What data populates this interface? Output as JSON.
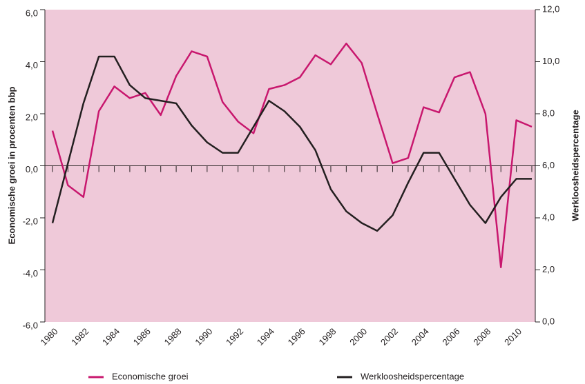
{
  "chart_data": {
    "type": "line",
    "x": [
      1980,
      1981,
      1982,
      1983,
      1984,
      1985,
      1986,
      1987,
      1988,
      1989,
      1990,
      1991,
      1992,
      1993,
      1994,
      1995,
      1996,
      1997,
      1998,
      1999,
      2000,
      2001,
      2002,
      2003,
      2004,
      2005,
      2006,
      2007,
      2008,
      2009,
      2010,
      2011
    ],
    "xlim": [
      1980,
      2011
    ],
    "xticks": [
      1980,
      1982,
      1984,
      1986,
      1988,
      1990,
      1992,
      1994,
      1996,
      1998,
      2000,
      2002,
      2004,
      2006,
      2008,
      2010
    ],
    "ylabel": "Economische groei in procenten bbp",
    "y2label": "Werkloosheidspercentage",
    "ylim": [
      -6,
      6
    ],
    "yticks": [
      {
        "value": -6,
        "label": "-6,0"
      },
      {
        "value": -4,
        "label": "-4,0"
      },
      {
        "value": -2,
        "label": "-2,0"
      },
      {
        "value": 0,
        "label": "0,0"
      },
      {
        "value": 2,
        "label": "2,0"
      },
      {
        "value": 4,
        "label": "4,0"
      },
      {
        "value": 6,
        "label": "6,0"
      }
    ],
    "y2lim": [
      0,
      12
    ],
    "y2ticks": [
      {
        "value": 0,
        "label": "0,0"
      },
      {
        "value": 2,
        "label": "2,0"
      },
      {
        "value": 4,
        "label": "4,0"
      },
      {
        "value": 6,
        "label": "6,0"
      },
      {
        "value": 8,
        "label": "8,0"
      },
      {
        "value": 10,
        "label": "10,0"
      },
      {
        "value": 12,
        "label": "12,0"
      }
    ],
    "series": [
      {
        "name": "Economische groei",
        "color": "#c8176e",
        "values": [
          1.35,
          -0.75,
          -1.2,
          2.1,
          3.05,
          2.6,
          2.8,
          1.95,
          3.45,
          4.4,
          4.2,
          2.45,
          1.7,
          1.25,
          2.95,
          3.1,
          3.4,
          4.25,
          3.9,
          4.7,
          3.95,
          2.0,
          0.1,
          0.3,
          2.25,
          2.05,
          3.4,
          3.6,
          2.0,
          -3.9,
          1.75,
          1.5
        ]
      },
      {
        "name": "Werkloosheidspercentage",
        "color": "#231f20",
        "axis": "y2",
        "values": [
          3.8,
          6.1,
          8.4,
          10.2,
          10.2,
          9.1,
          8.6,
          8.5,
          8.4,
          7.55,
          6.9,
          6.5,
          6.5,
          7.5,
          8.5,
          8.1,
          7.5,
          6.6,
          5.1,
          4.25,
          3.8,
          3.5,
          4.1,
          5.35,
          6.5,
          6.5,
          5.5,
          4.5,
          3.8,
          4.8,
          5.5,
          5.5
        ]
      }
    ]
  }
}
